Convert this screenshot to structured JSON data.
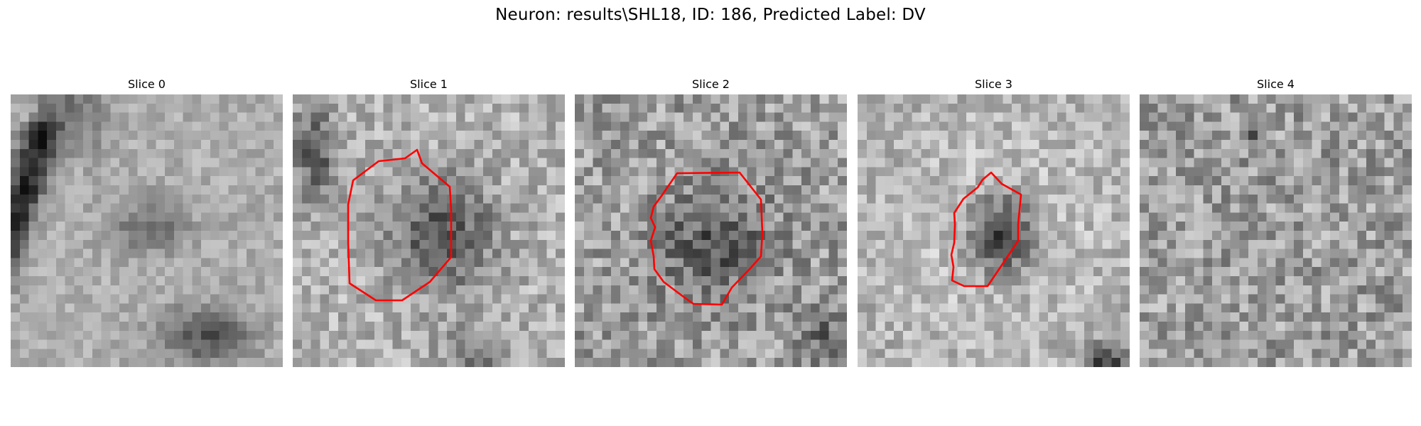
{
  "figure": {
    "title": "Neuron: results\\SHL18, ID: 186, Predicted Label: DV"
  },
  "panels": [
    {
      "title": "Slice 0",
      "has_contour": false
    },
    {
      "title": "Slice 1",
      "has_contour": true
    },
    {
      "title": "Slice 2",
      "has_contour": true
    },
    {
      "title": "Slice 3",
      "has_contour": true
    },
    {
      "title": "Slice 4",
      "has_contour": false
    }
  ],
  "colors": {
    "contour": "#ff0000",
    "background": "#ffffff",
    "colormap": "gray"
  }
}
